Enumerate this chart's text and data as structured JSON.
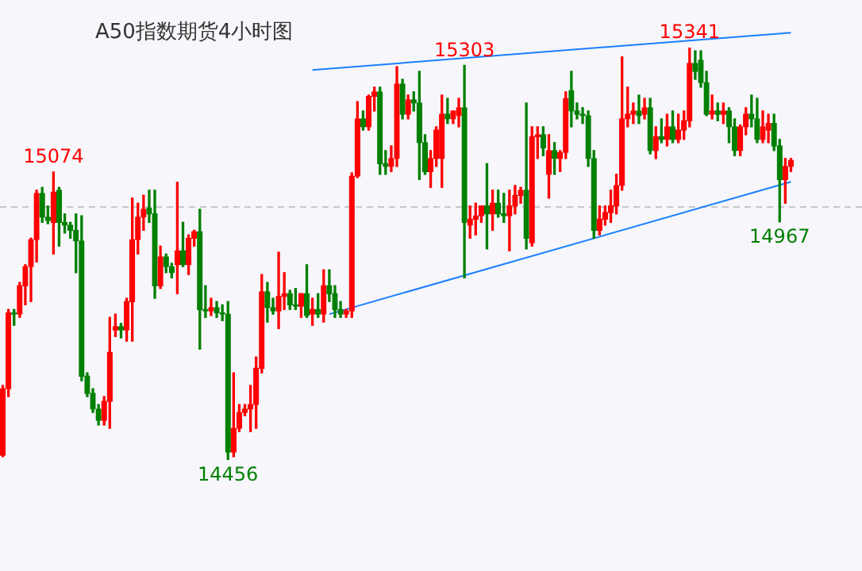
{
  "chart_data": {
    "type": "candlestick",
    "title": "A50指数期货4小时图",
    "categories": [
      null,
      null,
      null,
      null,
      null,
      null,
      null,
      null,
      null,
      null,
      null,
      null,
      null,
      null,
      null,
      null,
      null,
      null,
      null,
      null,
      null,
      null,
      null,
      null,
      null,
      null,
      null,
      null,
      null,
      null,
      null,
      null,
      null,
      null,
      null,
      null,
      null,
      null,
      null,
      null,
      null,
      null,
      null,
      null,
      null,
      null,
      null,
      null,
      null,
      null,
      null,
      null,
      null,
      null,
      null,
      null,
      null,
      null,
      null,
      null,
      null,
      null,
      null,
      null,
      null,
      null,
      null,
      null,
      null,
      null,
      null,
      null,
      null,
      null,
      null,
      null,
      null,
      null,
      null,
      null,
      null,
      null,
      null,
      null,
      null,
      null,
      null,
      null,
      null,
      null,
      null,
      null,
      null,
      null,
      null,
      null,
      null,
      null,
      null,
      null,
      null,
      null,
      null,
      null,
      null,
      null,
      null,
      null,
      null,
      null,
      null,
      null,
      null,
      null,
      null,
      null,
      null,
      null,
      null,
      null,
      null,
      null,
      null,
      null,
      null,
      null,
      null,
      null,
      null,
      null,
      null,
      null,
      null,
      null,
      null,
      null,
      null,
      null,
      null,
      null,
      null
    ],
    "ohlc": [
      [
        14466,
        14616,
        14463,
        14609
      ],
      [
        14609,
        14779,
        14592,
        14772
      ],
      [
        14772,
        14779,
        14745,
        14769
      ],
      [
        14769,
        14837,
        14762,
        14830
      ],
      [
        14830,
        14875,
        14789,
        14871
      ],
      [
        14871,
        14932,
        14796,
        14929
      ],
      [
        14929,
        15035,
        14881,
        15028
      ],
      [
        15028,
        15041,
        14966,
        14977
      ],
      [
        14977,
        15001,
        14963,
        14970
      ],
      [
        14966,
        15074,
        14898,
        15031
      ],
      [
        15035,
        15041,
        14915,
        14966
      ],
      [
        14966,
        14984,
        14943,
        14960
      ],
      [
        14960,
        14966,
        14932,
        14949
      ],
      [
        14949,
        14984,
        14858,
        14926
      ],
      [
        14926,
        14980,
        14626,
        14636
      ],
      [
        14636,
        14643,
        14592,
        14599
      ],
      [
        14599,
        14609,
        14558,
        14565
      ],
      [
        14565,
        14575,
        14531,
        14541
      ],
      [
        14541,
        14592,
        14531,
        14582
      ],
      [
        14582,
        14762,
        14524,
        14687
      ],
      [
        14735,
        14769,
        14721,
        14742
      ],
      [
        14742,
        14749,
        14718,
        14735
      ],
      [
        14735,
        14803,
        14711,
        14796
      ],
      [
        14796,
        15018,
        14711,
        14929
      ],
      [
        14929,
        15007,
        14898,
        14977
      ],
      [
        14977,
        15024,
        14949,
        14994
      ],
      [
        14997,
        15035,
        14966,
        14984
      ],
      [
        14984,
        15035,
        14803,
        14830
      ],
      [
        14830,
        14915,
        14824,
        14892
      ],
      [
        14892,
        14898,
        14858,
        14871
      ],
      [
        14871,
        14878,
        14847,
        14858
      ],
      [
        14875,
        15052,
        14813,
        14905
      ],
      [
        14905,
        14966,
        14871,
        14875
      ],
      [
        14875,
        14939,
        14854,
        14932
      ],
      [
        14932,
        14949,
        14915,
        14946
      ],
      [
        14946,
        14994,
        14694,
        14779
      ],
      [
        14779,
        14830,
        14762,
        14776
      ],
      [
        14776,
        14803,
        14766,
        14783
      ],
      [
        14783,
        14796,
        14762,
        14772
      ],
      [
        14772,
        14789,
        14755,
        14769
      ],
      [
        14769,
        14796,
        14456,
        14473
      ],
      [
        14473,
        14643,
        14463,
        14524
      ],
      [
        14524,
        14575,
        14517,
        14558
      ],
      [
        14558,
        14575,
        14551,
        14565
      ],
      [
        14565,
        14616,
        14517,
        14575
      ],
      [
        14575,
        14677,
        14524,
        14653
      ],
      [
        14653,
        14854,
        14643,
        14817
      ],
      [
        14817,
        14837,
        14752,
        14783
      ],
      [
        14783,
        14803,
        14769,
        14776
      ],
      [
        14776,
        14902,
        14738,
        14807
      ],
      [
        14807,
        14858,
        14779,
        14813
      ],
      [
        14813,
        14820,
        14779,
        14789
      ],
      [
        14789,
        14824,
        14779,
        14786
      ],
      [
        14786,
        14813,
        14762,
        14813
      ],
      [
        14813,
        14875,
        14762,
        14766
      ],
      [
        14769,
        14803,
        14745,
        14779
      ],
      [
        14779,
        14813,
        14762,
        14769
      ],
      [
        14769,
        14864,
        14752,
        14830
      ],
      [
        14830,
        14864,
        14796,
        14813
      ],
      [
        14813,
        14830,
        14762,
        14779
      ],
      [
        14779,
        14796,
        14762,
        14769
      ],
      [
        14769,
        14779,
        14762,
        14776
      ],
      [
        14776,
        15072,
        14762,
        15065
      ],
      [
        15065,
        15225,
        15062,
        15188
      ],
      [
        15188,
        15205,
        15164,
        15171
      ],
      [
        15171,
        15239,
        15164,
        15236
      ],
      [
        15236,
        15256,
        15205,
        15246
      ],
      [
        15246,
        15256,
        15069,
        15092
      ],
      [
        15092,
        15120,
        15069,
        15086
      ],
      [
        15086,
        15130,
        15075,
        15103
      ],
      [
        15103,
        15300,
        15086,
        15263
      ],
      [
        15263,
        15273,
        15188,
        15198
      ],
      [
        15198,
        15239,
        15188,
        15229
      ],
      [
        15229,
        15246,
        15205,
        15222
      ],
      [
        15222,
        15290,
        15058,
        15137
      ],
      [
        15137,
        15154,
        15069,
        15075
      ],
      [
        15075,
        15120,
        15041,
        15103
      ],
      [
        15103,
        15171,
        15086,
        15164
      ],
      [
        15103,
        15239,
        15041,
        15198
      ],
      [
        15198,
        15232,
        15178,
        15188
      ],
      [
        15188,
        15205,
        15178,
        15205
      ],
      [
        15195,
        15232,
        15171,
        15212
      ],
      [
        15212,
        15303,
        14847,
        14966
      ],
      [
        14960,
        15001,
        14932,
        14973
      ],
      [
        14973,
        15007,
        14939,
        14980
      ],
      [
        14980,
        15001,
        14966,
        15001
      ],
      [
        15001,
        15092,
        14909,
        14984
      ],
      [
        14984,
        15035,
        14949,
        15007
      ],
      [
        15007,
        15035,
        14977,
        14984
      ],
      [
        14984,
        15028,
        14966,
        14980
      ],
      [
        14980,
        15035,
        14905,
        15001
      ],
      [
        15001,
        15045,
        14984,
        15024
      ],
      [
        15024,
        15041,
        15007,
        15035
      ],
      [
        15035,
        15222,
        14909,
        14932
      ],
      [
        14922,
        15171,
        14915,
        15150
      ],
      [
        15150,
        15171,
        15103,
        15154
      ],
      [
        15154,
        15171,
        15109,
        15126
      ],
      [
        15069,
        15154,
        15018,
        15120
      ],
      [
        15120,
        15137,
        15069,
        15103
      ],
      [
        15103,
        15120,
        15075,
        15116
      ],
      [
        15116,
        15246,
        15103,
        15232
      ],
      [
        15249,
        15290,
        15171,
        15205
      ],
      [
        15205,
        15222,
        15188,
        15198
      ],
      [
        15198,
        15212,
        15178,
        15195
      ],
      [
        15195,
        15205,
        15086,
        15103
      ],
      [
        15103,
        15120,
        14932,
        14949
      ],
      [
        14949,
        15001,
        14939,
        14973
      ],
      [
        14973,
        15001,
        14960,
        14987
      ],
      [
        14987,
        15035,
        14966,
        15001
      ],
      [
        15001,
        15069,
        14984,
        15045
      ],
      [
        15045,
        15321,
        15035,
        15188
      ],
      [
        15188,
        15256,
        15171,
        15198
      ],
      [
        15198,
        15222,
        15178,
        15205
      ],
      [
        15205,
        15239,
        15178,
        15195
      ],
      [
        15198,
        15232,
        15188,
        15212
      ],
      [
        15212,
        15232,
        15113,
        15120
      ],
      [
        15120,
        15171,
        15103,
        15150
      ],
      [
        15150,
        15188,
        15137,
        15144
      ],
      [
        15144,
        15198,
        15130,
        15171
      ],
      [
        15171,
        15205,
        15137,
        15144
      ],
      [
        15144,
        15198,
        15137,
        15164
      ],
      [
        15164,
        15205,
        15144,
        15184
      ],
      [
        15184,
        15341,
        15171,
        15307
      ],
      [
        15307,
        15334,
        15273,
        15290
      ],
      [
        15314,
        15334,
        15256,
        15266
      ],
      [
        15266,
        15290,
        15195,
        15198
      ],
      [
        15198,
        15239,
        15188,
        15205
      ],
      [
        15205,
        15222,
        15184,
        15198
      ],
      [
        15198,
        15222,
        15178,
        15205
      ],
      [
        15205,
        15212,
        15137,
        15171
      ],
      [
        15171,
        15188,
        15109,
        15120
      ],
      [
        15120,
        15175,
        15109,
        15171
      ],
      [
        15171,
        15212,
        15154,
        15198
      ],
      [
        15198,
        15239,
        15171,
        15188
      ],
      [
        15188,
        15232,
        15137,
        15144
      ],
      [
        15144,
        15205,
        15137,
        15171
      ],
      [
        15164,
        15198,
        15137,
        15178
      ],
      [
        15178,
        15198,
        15120,
        15130
      ],
      [
        15130,
        15144,
        14967,
        15058
      ],
      [
        15058,
        15103,
        15007,
        15086
      ],
      [
        15086,
        15103,
        15075,
        15099
      ]
    ],
    "series": [
      {
        "type": "line",
        "color": "#1a7fff",
        "values": [
          null,
          null,
          null,
          null,
          null,
          null,
          null,
          null,
          null,
          null,
          null,
          null,
          null,
          null,
          null,
          null,
          null,
          null,
          null,
          null,
          null,
          null,
          null,
          null,
          null,
          null,
          null,
          null,
          null,
          null,
          null,
          null,
          null,
          null,
          null,
          null,
          null,
          null,
          null,
          null,
          null,
          null,
          null,
          null,
          null,
          null,
          null,
          null,
          null,
          null,
          null,
          null,
          null,
          null,
          null,
          15293,
          null,
          null,
          null,
          null,
          null,
          null,
          null,
          null,
          null,
          null,
          null,
          null,
          null,
          null,
          null,
          null,
          null,
          null,
          null,
          null,
          null,
          null,
          null,
          null,
          null,
          null,
          null,
          null,
          null,
          null,
          null,
          null,
          null,
          null,
          null,
          null,
          null,
          null,
          null,
          null,
          null,
          null,
          null,
          null,
          null,
          null,
          null,
          null,
          null,
          null,
          null,
          null,
          null,
          null,
          null,
          null,
          null,
          null,
          null,
          null,
          null,
          null,
          null,
          null,
          null,
          null,
          null,
          null,
          null,
          null,
          null,
          null,
          null,
          null,
          null,
          null,
          null,
          null,
          null,
          null,
          null,
          null,
          null,
          null,
          15373
        ]
      },
      {
        "type": "line",
        "color": "#1a7fff",
        "values": [
          null,
          null,
          null,
          null,
          null,
          null,
          null,
          null,
          null,
          null,
          null,
          null,
          null,
          null,
          null,
          null,
          null,
          null,
          null,
          null,
          null,
          null,
          null,
          null,
          null,
          null,
          null,
          null,
          null,
          null,
          null,
          null,
          null,
          null,
          null,
          null,
          null,
          null,
          null,
          null,
          null,
          null,
          null,
          null,
          null,
          null,
          null,
          null,
          null,
          null,
          null,
          null,
          null,
          null,
          null,
          null,
          null,
          null,
          14769,
          null,
          null,
          null,
          null,
          null,
          null,
          null,
          null,
          null,
          null,
          null,
          null,
          null,
          null,
          null,
          null,
          null,
          null,
          null,
          null,
          null,
          null,
          null,
          null,
          null,
          null,
          null,
          null,
          null,
          null,
          null,
          null,
          null,
          null,
          null,
          null,
          null,
          null,
          null,
          null,
          null,
          null,
          null,
          null,
          null,
          null,
          null,
          null,
          null,
          null,
          null,
          null,
          null,
          null,
          null,
          null,
          null,
          null,
          null,
          null,
          null,
          null,
          null,
          null,
          null,
          null,
          null,
          null,
          null,
          null,
          null,
          null,
          null,
          null,
          null,
          null,
          null,
          null,
          null,
          null,
          null,
          15053
        ]
      }
    ],
    "ref_lines": [
      {
        "axis": "y",
        "value": 15000,
        "color": "#c8c8c8",
        "line_style": "dashed"
      }
    ],
    "annotations": [
      {
        "text": "15074",
        "y": 15074
      },
      {
        "text": "15303",
        "y": 15303
      },
      {
        "text": "15341",
        "y": 15341
      },
      {
        "text": "14967",
        "y": 14967
      },
      {
        "text": "14456",
        "y": 14456
      }
    ]
  }
}
